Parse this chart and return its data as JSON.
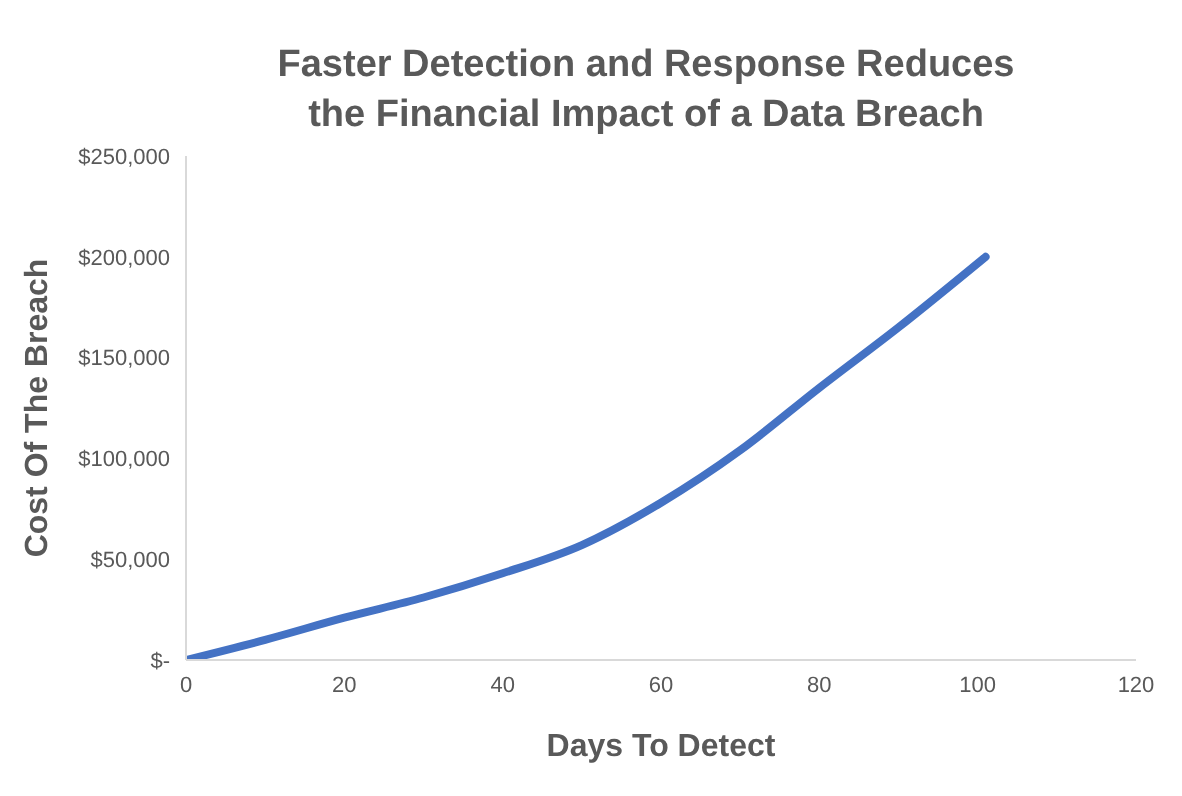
{
  "chart_data": {
    "type": "line",
    "title": "Faster Detection and Response Reduces the Financial Impact of a Data Breach",
    "xlabel": "Days To Detect",
    "ylabel": "Cost Of The Breach",
    "x": [
      0,
      10,
      20,
      30,
      40,
      50,
      60,
      70,
      80,
      90,
      101
    ],
    "series": [
      {
        "color": "#4472c4",
        "values": [
          0,
          10000,
          21000,
          31000,
          43000,
          57000,
          78000,
          104000,
          135000,
          165000,
          200000
        ]
      }
    ],
    "xlim": [
      0,
      120
    ],
    "xticks": [
      0,
      20,
      40,
      60,
      80,
      100,
      120
    ],
    "ylim": [
      0,
      250000
    ],
    "yticks": [
      {
        "value": 0,
        "label": "$-"
      },
      {
        "value": 50000,
        "label": "$50,000"
      },
      {
        "value": 100000,
        "label": "$100,000"
      },
      {
        "value": 150000,
        "label": "$150,000"
      },
      {
        "value": 200000,
        "label": "$200,000"
      },
      {
        "value": 250000,
        "label": "$250,000"
      }
    ],
    "grid": false,
    "legend": false,
    "marker": "none",
    "line_style": "solid"
  }
}
